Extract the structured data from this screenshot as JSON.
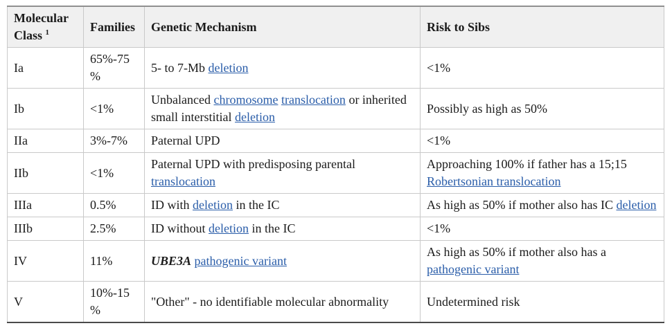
{
  "theme": {
    "link_color": "#2a5da9",
    "header_background": "#f0f0f0",
    "border_color": "#c9c9c9",
    "text_color": "#1b1b1b"
  },
  "table": {
    "headers": [
      {
        "label": "Molecular Class",
        "sup": "1"
      },
      {
        "label": "Families"
      },
      {
        "label": "Genetic Mechanism"
      },
      {
        "label": "Risk to Sibs"
      }
    ],
    "rows": [
      {
        "molecular_class": "Ia",
        "families": "65%-75%",
        "mechanism": [
          {
            "t": "5- to 7-Mb "
          },
          {
            "t": "deletion",
            "link": true
          }
        ],
        "risk": [
          {
            "t": "<1%"
          }
        ]
      },
      {
        "molecular_class": "Ib",
        "families": "<1%",
        "mechanism": [
          {
            "t": "Unbalanced "
          },
          {
            "t": "chromosome",
            "link": true
          },
          {
            "t": " "
          },
          {
            "t": "translocation",
            "link": true
          },
          {
            "t": " or inherited small interstitial "
          },
          {
            "t": "deletion",
            "link": true
          }
        ],
        "risk": [
          {
            "t": "Possibly as high as 50%"
          }
        ]
      },
      {
        "molecular_class": "IIa",
        "families": "3%-7%",
        "mechanism": [
          {
            "t": "Paternal UPD"
          }
        ],
        "risk": [
          {
            "t": "<1%"
          }
        ]
      },
      {
        "molecular_class": "IIb",
        "families": "<1%",
        "mechanism": [
          {
            "t": "Paternal UPD with predisposing parental "
          },
          {
            "t": "translocation",
            "link": true
          }
        ],
        "risk": [
          {
            "t": "Approaching 100% if father has a 15;15 "
          },
          {
            "t": "Robertsonian translocation",
            "link": true
          }
        ]
      },
      {
        "molecular_class": "IIIa",
        "families": "0.5%",
        "mechanism": [
          {
            "t": "ID with "
          },
          {
            "t": "deletion",
            "link": true
          },
          {
            "t": " in the IC"
          }
        ],
        "risk": [
          {
            "t": "As high as 50% if mother also has IC "
          },
          {
            "t": "deletion",
            "link": true
          }
        ]
      },
      {
        "molecular_class": "IIIb",
        "families": "2.5%",
        "mechanism": [
          {
            "t": "ID without "
          },
          {
            "t": "deletion",
            "link": true
          },
          {
            "t": " in the IC"
          }
        ],
        "risk": [
          {
            "t": "<1%"
          }
        ]
      },
      {
        "molecular_class": "IV",
        "families": "11%",
        "mechanism": [
          {
            "t": "UBE3A",
            "style": "bold-italic"
          },
          {
            "t": " "
          },
          {
            "t": "pathogenic variant",
            "link": true
          }
        ],
        "risk": [
          {
            "t": "As high as 50% if mother also has a "
          },
          {
            "t": "pathogenic variant",
            "link": true
          }
        ]
      },
      {
        "molecular_class": "V",
        "families": "10%-15%",
        "mechanism": [
          {
            "t": "\"Other\" - no identifiable molecular abnormality"
          }
        ],
        "risk": [
          {
            "t": "Undetermined risk"
          }
        ]
      }
    ]
  }
}
